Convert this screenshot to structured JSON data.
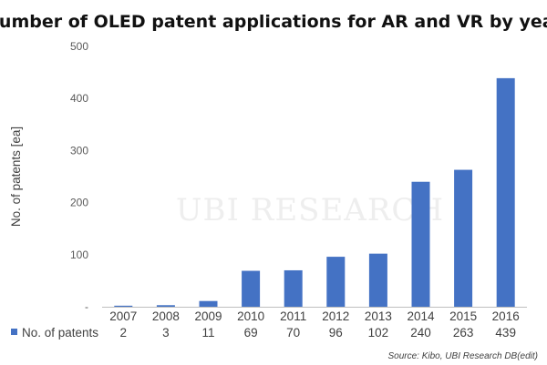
{
  "chart_data": {
    "type": "bar",
    "title": "Number of OLED patent applications for AR and VR by year",
    "ylabel": "No. of patents [ea]",
    "categories": [
      "2007",
      "2008",
      "2009",
      "2010",
      "2011",
      "2012",
      "2013",
      "2014",
      "2015",
      "2016"
    ],
    "series": [
      {
        "name": "No. of patents",
        "values": [
          2,
          3,
          11,
          69,
          70,
          96,
          102,
          240,
          263,
          439
        ]
      }
    ],
    "value_labels": [
      "2",
      "3",
      "11",
      "69",
      "70",
      "96",
      "102",
      "240",
      "263",
      "439"
    ],
    "ylim": [
      0,
      500
    ],
    "yticks": [
      0,
      100,
      200,
      300,
      400,
      500
    ],
    "ytick_labels": [
      "-",
      "100",
      "200",
      "300",
      "400",
      "500"
    ],
    "data_table": true,
    "legend_position": "data-table",
    "grid": false,
    "bar_color": "#4472C4",
    "source": "Source: Kibo, UBI Research DB(edit)",
    "watermark": "UBI RESEARCH"
  }
}
